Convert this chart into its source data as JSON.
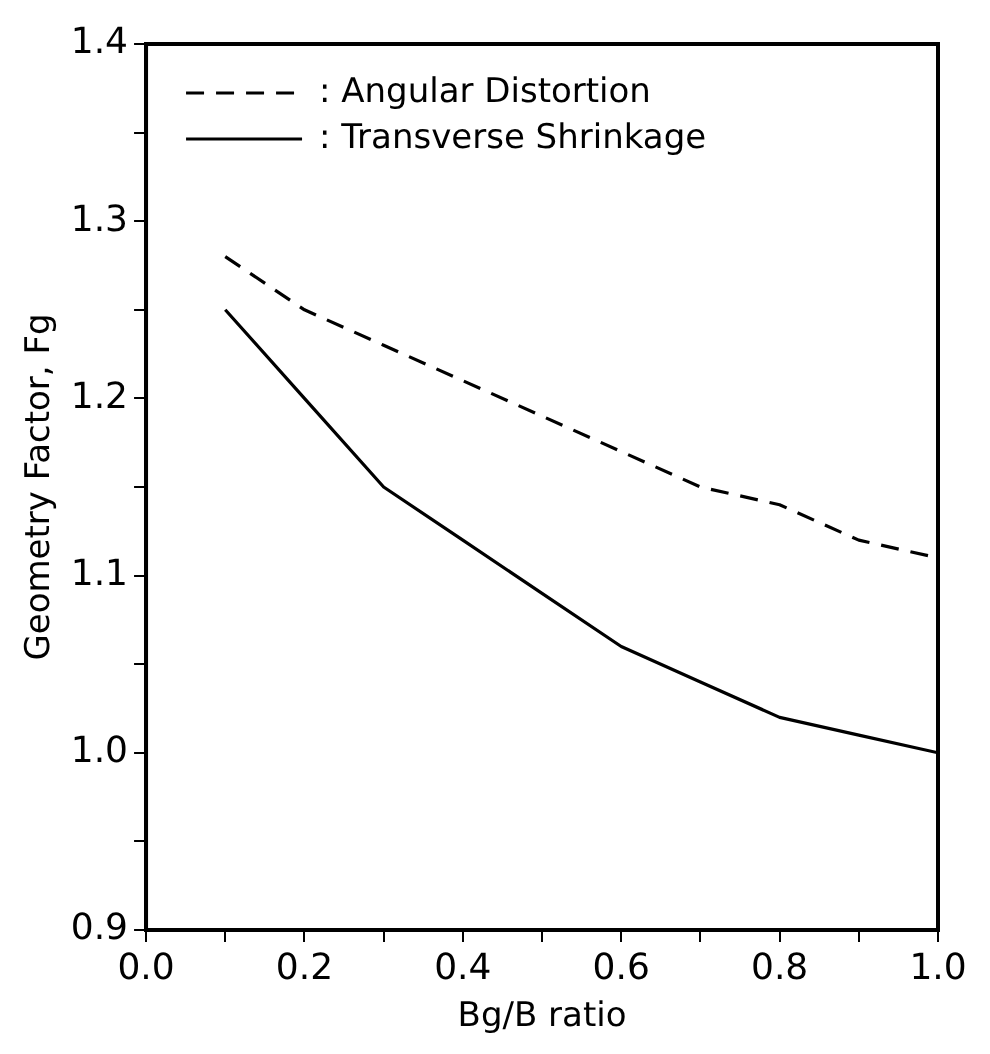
{
  "chart_data": {
    "type": "line",
    "xlabel": "Bg/B ratio",
    "ylabel": "Geometry Factor, Fg",
    "x": [
      0.1,
      0.2,
      0.3,
      0.4,
      0.5,
      0.6,
      0.7,
      0.8,
      0.9,
      1.0
    ],
    "series": [
      {
        "name": ": Angular Distortion",
        "color": "#000000",
        "line_style": "dashed",
        "values": [
          1.28,
          1.25,
          1.23,
          1.21,
          1.19,
          1.17,
          1.15,
          1.14,
          1.12,
          1.11
        ]
      },
      {
        "name": ": Transverse Shrinkage",
        "color": "#000000",
        "line_style": "solid",
        "values": [
          1.25,
          1.2,
          1.15,
          1.12,
          1.09,
          1.06,
          1.04,
          1.02,
          1.01,
          1.0
        ]
      }
    ],
    "xlim": [
      0.0,
      1.0
    ],
    "xticks": [
      {
        "value": 0.0,
        "label": "0.0"
      },
      {
        "value": 0.1,
        "label": null
      },
      {
        "value": 0.2,
        "label": "0.2"
      },
      {
        "value": 0.3,
        "label": null
      },
      {
        "value": 0.4,
        "label": "0.4"
      },
      {
        "value": 0.5,
        "label": null
      },
      {
        "value": 0.6,
        "label": "0.6"
      },
      {
        "value": 0.7,
        "label": null
      },
      {
        "value": 0.8,
        "label": "0.8"
      },
      {
        "value": 0.9,
        "label": null
      },
      {
        "value": 1.0,
        "label": "1.0"
      }
    ],
    "ylim": [
      0.9,
      1.4
    ],
    "yticks": [
      {
        "value": 0.9,
        "label": "0.9"
      },
      {
        "value": 0.95,
        "label": null
      },
      {
        "value": 1.0,
        "label": "1.0"
      },
      {
        "value": 1.05,
        "label": null
      },
      {
        "value": 1.1,
        "label": "1.1"
      },
      {
        "value": 1.15,
        "label": null
      },
      {
        "value": 1.2,
        "label": "1.2"
      },
      {
        "value": 1.25,
        "label": null
      },
      {
        "value": 1.3,
        "label": "1.3"
      },
      {
        "value": 1.35,
        "label": null
      },
      {
        "value": 1.4,
        "label": "1.4"
      }
    ],
    "grid": false,
    "legend": "top left",
    "marker": "none"
  }
}
